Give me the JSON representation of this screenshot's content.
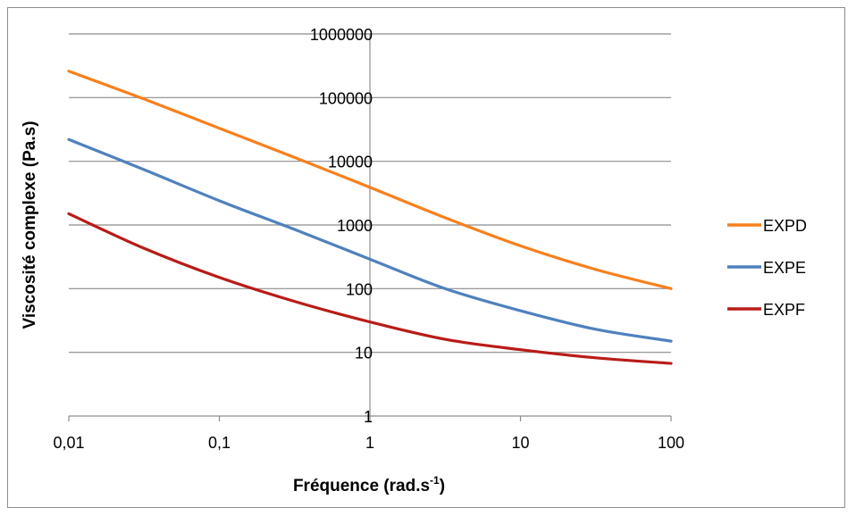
{
  "chart_data": {
    "type": "line",
    "x_scale": "log",
    "y_scale": "log",
    "xlim": [
      0.01,
      100
    ],
    "ylim": [
      1,
      1000000
    ],
    "x_tick_labels": [
      "0,01",
      "0,1",
      "1",
      "10",
      "100"
    ],
    "x_tick_values": [
      0.01,
      0.1,
      1,
      10,
      100
    ],
    "y_tick_labels": [
      "1",
      "10",
      "100",
      "1000",
      "10000",
      "100000",
      "1000000"
    ],
    "y_tick_values": [
      1,
      10,
      100,
      1000,
      10000,
      100000,
      1000000
    ],
    "xlabel": "Fréquence (rad.s",
    "xlabel_superscript": "-1",
    "xlabel_suffix": ")",
    "ylabel": "Viscosité complexe (Pa.s)",
    "grid": "horizontal",
    "legend_position": "right",
    "series": [
      {
        "name": "EXPD",
        "color": "#f7801e",
        "x": [
          0.01,
          0.0316,
          0.1,
          0.316,
          1,
          3.16,
          10,
          31.6,
          100
        ],
        "y": [
          260000,
          95000,
          33000,
          11500,
          3900,
          1300,
          470,
          200,
          100
        ]
      },
      {
        "name": "EXPE",
        "color": "#4f81bd",
        "x": [
          0.01,
          0.0316,
          0.1,
          0.316,
          1,
          3.16,
          10,
          31.6,
          100
        ],
        "y": [
          22000,
          7400,
          2400,
          850,
          290,
          100,
          45,
          23,
          15
        ]
      },
      {
        "name": "EXPF",
        "color": "#b81c18",
        "x": [
          0.01,
          0.0316,
          0.1,
          0.316,
          1,
          3.16,
          10,
          31.6,
          100
        ],
        "y": [
          1500,
          430,
          150,
          63,
          30,
          16,
          11,
          8.2,
          6.7
        ]
      }
    ]
  }
}
